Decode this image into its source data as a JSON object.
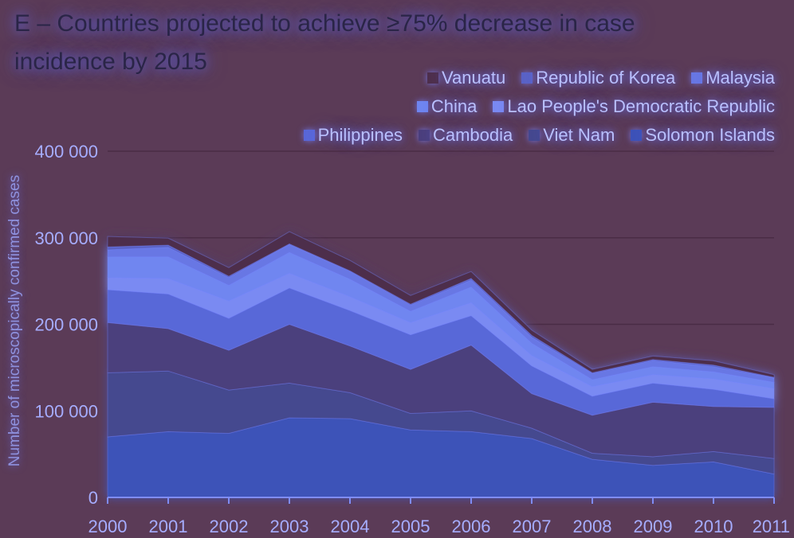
{
  "chart_data": {
    "type": "area",
    "title": "E – Countries projected to achieve ≥75% decrease in case incidence by 2015",
    "ylabel": "Number of microscopically confirmed cases",
    "xlabel": "",
    "x": [
      "2000",
      "2001",
      "2002",
      "2003",
      "2004",
      "2005",
      "2006",
      "2007",
      "2008",
      "2009",
      "2010",
      "2011"
    ],
    "ylim": [
      0,
      400000
    ],
    "yticks": [
      0,
      100000,
      200000,
      300000,
      400000
    ],
    "ytick_labels": [
      "0",
      "100 000",
      "200 000",
      "300 000",
      "400 000"
    ],
    "stacked": true,
    "legend_placement": "top-right",
    "grid": true,
    "legend_rows": [
      [
        "Vanuatu",
        "Republic of Korea",
        "Malaysia"
      ],
      [
        "China",
        "Lao People's Democratic Republic"
      ],
      [
        "Philippines",
        "Cambodia",
        "Viet Nam",
        "Solomon Islands"
      ]
    ],
    "series": [
      {
        "name": "Solomon Islands",
        "color": "#3d52b8",
        "values": [
          70000,
          76000,
          74000,
          92000,
          91000,
          78000,
          76000,
          68000,
          44000,
          37000,
          41000,
          27000
        ]
      },
      {
        "name": "Viet Nam",
        "color": "#45488f",
        "values": [
          74000,
          70000,
          50000,
          40000,
          30000,
          19000,
          24000,
          12000,
          7000,
          10000,
          12000,
          18000
        ]
      },
      {
        "name": "Cambodia",
        "color": "#4b3f7d",
        "values": [
          58000,
          49000,
          46000,
          68000,
          54000,
          51000,
          76000,
          40000,
          44000,
          63000,
          52000,
          59000
        ]
      },
      {
        "name": "Philippines",
        "color": "#5967d8",
        "values": [
          38000,
          40000,
          37000,
          42000,
          41000,
          40000,
          34000,
          32000,
          22000,
          22000,
          20000,
          10000
        ]
      },
      {
        "name": "Lao People's Democratic Republic",
        "color": "#7a8af2",
        "values": [
          14000,
          18000,
          20000,
          17000,
          16000,
          14000,
          15000,
          12000,
          11000,
          10000,
          12000,
          12000
        ]
      },
      {
        "name": "China",
        "color": "#6f86f0",
        "values": [
          24000,
          25000,
          18000,
          24000,
          20000,
          13000,
          18000,
          14000,
          8000,
          9000,
          8000,
          7000
        ]
      },
      {
        "name": "Malaysia",
        "color": "#6877e4",
        "values": [
          8000,
          11000,
          9000,
          9000,
          9000,
          7000,
          8000,
          7000,
          7000,
          7000,
          6000,
          5000
        ]
      },
      {
        "name": "Republic of Korea",
        "color": "#5a62c6",
        "values": [
          3500,
          2500,
          1500,
          1000,
          800,
          1300,
          2000,
          2200,
          1000,
          1300,
          1800,
          800
        ]
      },
      {
        "name": "Vanuatu",
        "color": "#4e2f4c",
        "values": [
          12000,
          8000,
          10000,
          14000,
          12000,
          10000,
          8000,
          6000,
          4000,
          4000,
          5000,
          3000
        ]
      }
    ]
  }
}
